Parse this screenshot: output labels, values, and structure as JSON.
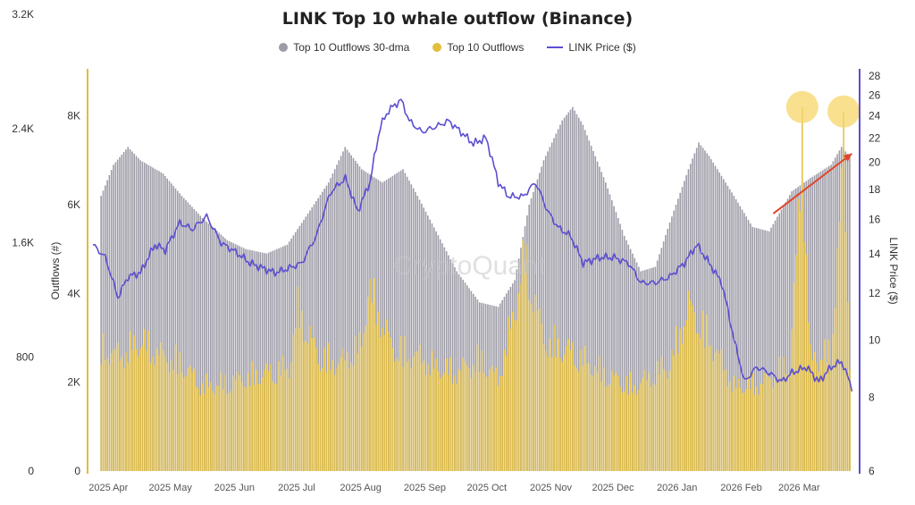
{
  "chart_data": {
    "type": "bar",
    "title": "LINK Top 10 whale outflow (Binance)",
    "watermark": "CryptoQuant",
    "legend_position": "top-center",
    "ylabel_left": "Outflows (#)",
    "ylabel_right": "LINK Price ($)",
    "y_left_outer_ticks": [
      "0",
      "800",
      "1.6K",
      "2.4K",
      "3.2K"
    ],
    "y_left_ticks": [
      "0",
      "2K",
      "4K",
      "6K",
      "8K"
    ],
    "y_left_range": [
      0,
      9000
    ],
    "y_right_ticks": [
      "6",
      "8",
      "10",
      "12",
      "14",
      "16",
      "18",
      "20",
      "22",
      "24",
      "26",
      "28"
    ],
    "y_right_scale": "log",
    "y_right_range": [
      6,
      28.5
    ],
    "x_range": [
      "2025-03-28",
      "2026-04-01"
    ],
    "x_ticks": [
      "2025 Apr",
      "2025 May",
      "2025 Jun",
      "2025 Jul",
      "2025 Aug",
      "2025 Sep",
      "2025 Oct",
      "2025 Nov",
      "2025 Dec",
      "2026 Jan",
      "2026 Feb",
      "2026 Mar"
    ],
    "colors": {
      "dma": "#9d9ba6",
      "outflows": "#e3bd3c",
      "price": "#5b4fd0",
      "arrow": "#e0452b",
      "highlight": "#f6d56a"
    },
    "series": [
      {
        "name": "Top 10 Outflows 30-dma",
        "type": "bar",
        "points": [
          [
            "2025-04-01",
            6200
          ],
          [
            "2025-04-07",
            6900
          ],
          [
            "2025-04-14",
            7300
          ],
          [
            "2025-04-20",
            7000
          ],
          [
            "2025-05-01",
            6700
          ],
          [
            "2025-05-10",
            6200
          ],
          [
            "2025-05-20",
            5700
          ],
          [
            "2025-06-01",
            5200
          ],
          [
            "2025-06-10",
            5000
          ],
          [
            "2025-06-20",
            4900
          ],
          [
            "2025-06-30",
            5100
          ],
          [
            "2025-07-10",
            5800
          ],
          [
            "2025-07-20",
            6500
          ],
          [
            "2025-07-28",
            7300
          ],
          [
            "2025-08-05",
            6800
          ],
          [
            "2025-08-15",
            6500
          ],
          [
            "2025-08-25",
            6800
          ],
          [
            "2025-09-01",
            6200
          ],
          [
            "2025-09-10",
            5400
          ],
          [
            "2025-09-20",
            4500
          ],
          [
            "2025-10-01",
            3800
          ],
          [
            "2025-10-10",
            3700
          ],
          [
            "2025-10-18",
            4300
          ],
          [
            "2025-10-25",
            6000
          ],
          [
            "2025-11-01",
            7000
          ],
          [
            "2025-11-10",
            7900
          ],
          [
            "2025-11-15",
            8200
          ],
          [
            "2025-11-20",
            7800
          ],
          [
            "2025-12-01",
            6500
          ],
          [
            "2025-12-10",
            5300
          ],
          [
            "2025-12-18",
            4500
          ],
          [
            "2025-12-25",
            4600
          ],
          [
            "2026-01-01",
            5600
          ],
          [
            "2026-01-10",
            6800
          ],
          [
            "2026-01-15",
            7400
          ],
          [
            "2026-01-20",
            7100
          ],
          [
            "2026-02-01",
            6200
          ],
          [
            "2026-02-10",
            5500
          ],
          [
            "2026-02-18",
            5400
          ],
          [
            "2026-03-01",
            6300
          ],
          [
            "2026-03-10",
            6600
          ],
          [
            "2026-03-20",
            6900
          ],
          [
            "2026-03-25",
            7300
          ],
          [
            "2026-03-29",
            7100
          ]
        ]
      },
      {
        "name": "Top 10 Outflows",
        "type": "bar",
        "points": [
          [
            "2025-04-01",
            3200
          ],
          [
            "2025-04-10",
            3000
          ],
          [
            "2025-04-20",
            3400
          ],
          [
            "2025-05-01",
            3000
          ],
          [
            "2025-05-10",
            2800
          ],
          [
            "2025-05-20",
            2200
          ],
          [
            "2025-06-01",
            2300
          ],
          [
            "2025-06-15",
            2500
          ],
          [
            "2025-07-01",
            2700
          ],
          [
            "2025-07-05",
            4200
          ],
          [
            "2025-07-15",
            3000
          ],
          [
            "2025-07-25",
            2800
          ],
          [
            "2025-08-05",
            3300
          ],
          [
            "2025-08-08",
            4800
          ],
          [
            "2025-08-20",
            3200
          ],
          [
            "2025-09-01",
            3000
          ],
          [
            "2025-09-10",
            2700
          ],
          [
            "2025-09-20",
            2600
          ],
          [
            "2025-10-01",
            2900
          ],
          [
            "2025-10-10",
            2400
          ],
          [
            "2025-10-18",
            4200
          ],
          [
            "2025-10-23",
            5600
          ],
          [
            "2025-11-01",
            3400
          ],
          [
            "2025-11-15",
            3100
          ],
          [
            "2025-12-01",
            2500
          ],
          [
            "2025-12-15",
            2200
          ],
          [
            "2026-01-01",
            2800
          ],
          [
            "2026-01-10",
            4300
          ],
          [
            "2026-01-20",
            3500
          ],
          [
            "2026-02-01",
            2200
          ],
          [
            "2026-02-15",
            2300
          ],
          [
            "2026-02-28",
            2800
          ],
          [
            "2026-03-06",
            8200
          ],
          [
            "2026-03-10",
            2900
          ],
          [
            "2026-03-20",
            3100
          ],
          [
            "2026-03-26",
            8100
          ],
          [
            "2026-03-29",
            3000
          ]
        ]
      },
      {
        "name": "LINK Price ($)",
        "type": "line",
        "axis": "right",
        "points": [
          [
            "2025-03-28",
            14.5
          ],
          [
            "2025-04-03",
            13.8
          ],
          [
            "2025-04-09",
            11.8
          ],
          [
            "2025-04-14",
            12.8
          ],
          [
            "2025-04-20",
            13.0
          ],
          [
            "2025-04-27",
            14.5
          ],
          [
            "2025-05-02",
            14.2
          ],
          [
            "2025-05-09",
            15.8
          ],
          [
            "2025-05-15",
            15.4
          ],
          [
            "2025-05-22",
            16.2
          ],
          [
            "2025-05-29",
            14.6
          ],
          [
            "2025-06-05",
            14.1
          ],
          [
            "2025-06-12",
            13.5
          ],
          [
            "2025-06-19",
            13.2
          ],
          [
            "2025-06-24",
            13.0
          ],
          [
            "2025-06-30",
            13.2
          ],
          [
            "2025-07-07",
            13.5
          ],
          [
            "2025-07-14",
            15.0
          ],
          [
            "2025-07-21",
            17.8
          ],
          [
            "2025-07-28",
            18.8
          ],
          [
            "2025-08-03",
            16.5
          ],
          [
            "2025-08-09",
            18.5
          ],
          [
            "2025-08-14",
            23.0
          ],
          [
            "2025-08-18",
            24.5
          ],
          [
            "2025-08-24",
            25.5
          ],
          [
            "2025-08-28",
            23.5
          ],
          [
            "2025-09-03",
            22.5
          ],
          [
            "2025-09-10",
            23.0
          ],
          [
            "2025-09-16",
            23.5
          ],
          [
            "2025-09-22",
            22.5
          ],
          [
            "2025-09-28",
            21.5
          ],
          [
            "2025-10-04",
            22.0
          ],
          [
            "2025-10-10",
            18.5
          ],
          [
            "2025-10-15",
            17.5
          ],
          [
            "2025-10-22",
            17.5
          ],
          [
            "2025-10-28",
            18.5
          ],
          [
            "2025-11-03",
            16.5
          ],
          [
            "2025-11-08",
            15.5
          ],
          [
            "2025-11-14",
            15.0
          ],
          [
            "2025-11-20",
            13.5
          ],
          [
            "2025-11-28",
            13.8
          ],
          [
            "2025-12-05",
            13.8
          ],
          [
            "2025-12-12",
            13.5
          ],
          [
            "2025-12-18",
            12.5
          ],
          [
            "2025-12-25",
            12.5
          ],
          [
            "2026-01-01",
            12.8
          ],
          [
            "2026-01-08",
            13.5
          ],
          [
            "2026-01-14",
            14.5
          ],
          [
            "2026-01-20",
            13.5
          ],
          [
            "2026-01-26",
            12.5
          ],
          [
            "2026-02-01",
            10.0
          ],
          [
            "2026-02-06",
            8.5
          ],
          [
            "2026-02-12",
            9.0
          ],
          [
            "2026-02-18",
            8.8
          ],
          [
            "2026-02-24",
            8.5
          ],
          [
            "2026-03-01",
            8.8
          ],
          [
            "2026-03-08",
            9.0
          ],
          [
            "2026-03-14",
            8.5
          ],
          [
            "2026-03-20",
            9.0
          ],
          [
            "2026-03-25",
            9.2
          ],
          [
            "2026-03-30",
            8.3
          ]
        ]
      }
    ],
    "annotations": [
      {
        "type": "arrow",
        "from": [
          "2026-02-20",
          5800
        ],
        "to": [
          "2026-03-30",
          7150
        ]
      },
      {
        "type": "highlight-circle",
        "at": [
          "2026-03-06",
          8200
        ]
      },
      {
        "type": "highlight-circle",
        "at": [
          "2026-03-26",
          8100
        ]
      }
    ]
  }
}
